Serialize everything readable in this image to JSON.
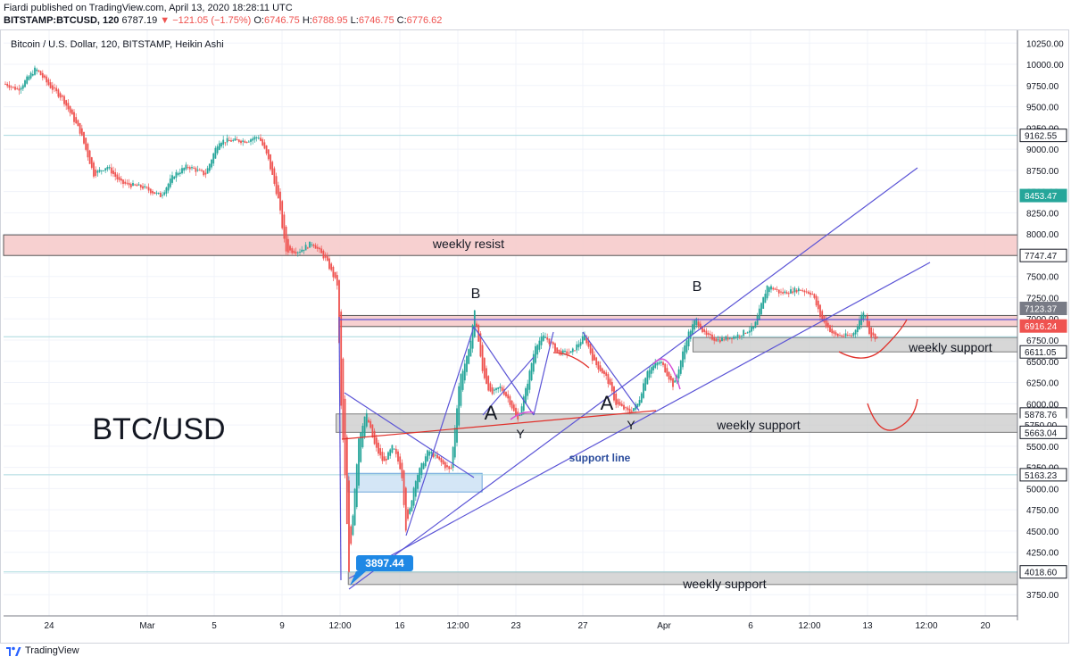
{
  "header": {
    "publisher_line": "Fiardi published on TradingView.com, April 13, 2020 18:28:11 UTC",
    "symbol": "BITSTAMP:BTCUSD, 120",
    "last": "6787.19",
    "change_arrow": "▼",
    "change": "−121.05 (−1.75%)",
    "o_label": "O:",
    "o": "6746.75",
    "h_label": "H:",
    "h": "6788.95",
    "l_label": "L:",
    "l": "6746.75",
    "c_label": "C:",
    "c": "6776.62"
  },
  "footer": {
    "brand": "TradingView"
  },
  "colors": {
    "up": "#26a69a",
    "down": "#ef5350",
    "trend": "#5b54d6",
    "resist_fill": "#f6c8c8",
    "support_fill": "#c9c9c9",
    "blue_zone": "#cfe3f5",
    "red_ann": "#e0302a",
    "magenta": "#d64fd6",
    "level_line": "#a7d8de"
  },
  "chart_data": {
    "type": "candlestick",
    "instrument_title": "Bitcoin / U.S. Dollar, 120, BITSTAMP, Heikin Ashi",
    "watermark": "BTC/USD",
    "y_range": [
      3500,
      10400
    ],
    "y_ticks": [
      "10250.00",
      "10000.00",
      "9750.00",
      "9500.00",
      "9250.00",
      "9000.00",
      "8750.00",
      "8500.00",
      "8250.00",
      "8000.00",
      "7750.00",
      "7500.00",
      "7250.00",
      "7000.00",
      "6750.00",
      "6500.00",
      "6250.00",
      "6000.00",
      "5750.00",
      "5500.00",
      "5250.00",
      "5000.00",
      "4750.00",
      "4500.00",
      "4250.00",
      "4000.00",
      "3750.00"
    ],
    "y_tick_values": [
      10250,
      10000,
      9750,
      9500,
      9250,
      9000,
      8750,
      8500,
      8250,
      8000,
      7750,
      7500,
      7250,
      7000,
      6750,
      6500,
      6250,
      6000,
      5750,
      5500,
      5250,
      5000,
      4750,
      4500,
      4250,
      4000,
      3750
    ],
    "x_ticks": [
      "24",
      "Mar",
      "5",
      "9",
      "12:00",
      "16",
      "12:00",
      "23",
      "27",
      "Apr",
      "6",
      "12:00",
      "13",
      "12:00",
      "20"
    ],
    "price_badges": [
      {
        "value": "9162.55",
        "price": 9162.55,
        "style": "outline"
      },
      {
        "value": "8453.47",
        "price": 8453.47,
        "style": "green"
      },
      {
        "value": "7747.47",
        "price": 7747.47,
        "style": "outline"
      },
      {
        "value": "7123.37",
        "price": 7123.37,
        "style": "gray"
      },
      {
        "value": "6916.24",
        "price": 6916.24,
        "style": "red"
      },
      {
        "value": "6611.05",
        "price": 6611.05,
        "style": "outline"
      },
      {
        "value": "5878.76",
        "price": 5878.76,
        "style": "outline"
      },
      {
        "value": "5750.00",
        "price": 5750,
        "style": "plain"
      },
      {
        "value": "5663.04",
        "price": 5663.04,
        "style": "outline"
      },
      {
        "value": "5163.23",
        "price": 5163.23,
        "style": "outline"
      },
      {
        "value": "4018.60",
        "price": 4018.6,
        "style": "outline"
      }
    ],
    "zones": [
      {
        "label": "weekly resist",
        "top": 7990,
        "bottom": 7747,
        "x_start_pct": 0,
        "x_end_pct": 1,
        "kind": "resist"
      },
      {
        "label": "",
        "top": 7040,
        "bottom": 6910,
        "x_start_pct": 0.331,
        "x_end_pct": 1,
        "kind": "resist"
      },
      {
        "label": "weekly support",
        "top": 6780,
        "bottom": 6611,
        "x_start_pct": 0.68,
        "x_end_pct": 1,
        "kind": "support"
      },
      {
        "label": "weekly support",
        "top": 5880,
        "bottom": 5663,
        "x_start_pct": 0.328,
        "x_end_pct": 1,
        "kind": "support"
      },
      {
        "label": "",
        "top": 5180,
        "bottom": 4960,
        "x_start_pct": 0.34,
        "x_end_pct": 0.472,
        "kind": "blue"
      },
      {
        "label": "weekly support",
        "top": 4018,
        "bottom": 3870,
        "x_start_pct": 0.34,
        "x_end_pct": 1,
        "kind": "support"
      }
    ],
    "annotations": {
      "wave_labels": [
        "B",
        "A",
        "Y",
        "A",
        "Y",
        "B"
      ],
      "support_line_label": "support line",
      "low_callout": "3897.44"
    },
    "price_path": [
      [
        0,
        9800
      ],
      [
        20,
        9700
      ],
      [
        40,
        9950
      ],
      [
        55,
        9750
      ],
      [
        70,
        9600
      ],
      [
        90,
        9200
      ],
      [
        105,
        8700
      ],
      [
        120,
        8800
      ],
      [
        135,
        8600
      ],
      [
        160,
        8550
      ],
      [
        180,
        8450
      ],
      [
        195,
        8700
      ],
      [
        210,
        8800
      ],
      [
        230,
        8700
      ],
      [
        245,
        9100
      ],
      [
        260,
        9100
      ],
      [
        275,
        9100
      ],
      [
        290,
        9150
      ],
      [
        300,
        8900
      ],
      [
        312,
        8400
      ],
      [
        320,
        7800
      ],
      [
        335,
        7800
      ],
      [
        350,
        7900
      ],
      [
        365,
        7700
      ],
      [
        378,
        7400
      ],
      [
        382,
        6000
      ],
      [
        386,
        5300
      ],
      [
        391,
        4000
      ],
      [
        396,
        4800
      ],
      [
        402,
        5600
      ],
      [
        410,
        5900
      ],
      [
        420,
        5500
      ],
      [
        430,
        5300
      ],
      [
        440,
        5500
      ],
      [
        450,
        5200
      ],
      [
        455,
        4500
      ],
      [
        465,
        5100
      ],
      [
        480,
        5450
      ],
      [
        495,
        5300
      ],
      [
        505,
        5200
      ],
      [
        515,
        6300
      ],
      [
        525,
        6600
      ],
      [
        532,
        7100
      ],
      [
        540,
        6400
      ],
      [
        550,
        6100
      ],
      [
        560,
        6200
      ],
      [
        570,
        6050
      ],
      [
        580,
        5800
      ],
      [
        590,
        6200
      ],
      [
        600,
        6700
      ],
      [
        610,
        6800
      ],
      [
        625,
        6600
      ],
      [
        640,
        6600
      ],
      [
        655,
        6800
      ],
      [
        665,
        6500
      ],
      [
        680,
        6300
      ],
      [
        690,
        6000
      ],
      [
        705,
        5900
      ],
      [
        715,
        6000
      ],
      [
        725,
        6400
      ],
      [
        740,
        6500
      ],
      [
        755,
        6200
      ],
      [
        770,
        6800
      ],
      [
        780,
        7000
      ],
      [
        790,
        6800
      ],
      [
        805,
        6750
      ],
      [
        825,
        6800
      ],
      [
        845,
        6900
      ],
      [
        860,
        7400
      ],
      [
        875,
        7300
      ],
      [
        895,
        7350
      ],
      [
        910,
        7300
      ],
      [
        920,
        7000
      ],
      [
        935,
        6800
      ],
      [
        955,
        6800
      ],
      [
        968,
        7100
      ],
      [
        975,
        6800
      ],
      [
        985,
        6780
      ]
    ]
  }
}
